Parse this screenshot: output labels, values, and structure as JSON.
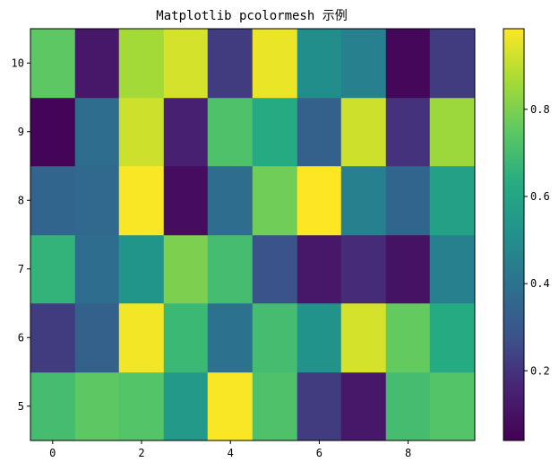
{
  "chart_data": {
    "type": "heatmap",
    "title": "Matplotlib pcolormesh 示例",
    "xlabel": "",
    "ylabel": "",
    "colormap": "viridis",
    "x_range": [
      -0.5,
      9.5
    ],
    "y_range": [
      4.5,
      10.5
    ],
    "x_ticks": [
      0,
      2,
      4,
      6,
      8
    ],
    "y_ticks": [
      5,
      6,
      7,
      8,
      9,
      10
    ],
    "x_centers": [
      0,
      1,
      2,
      3,
      4,
      5,
      6,
      7,
      8,
      9
    ],
    "y_centers": [
      5,
      6,
      7,
      8,
      9,
      10
    ],
    "values": [
      [
        0.7,
        0.75,
        0.73,
        0.55,
        0.98,
        0.72,
        0.22,
        0.12,
        0.7,
        0.73
      ],
      [
        0.22,
        0.33,
        0.97,
        0.68,
        0.4,
        0.7,
        0.52,
        0.93,
        0.76,
        0.62
      ],
      [
        0.66,
        0.38,
        0.53,
        0.8,
        0.7,
        0.28,
        0.12,
        0.18,
        0.1,
        0.45
      ],
      [
        0.35,
        0.36,
        0.98,
        0.08,
        0.38,
        0.78,
        0.99,
        0.45,
        0.35,
        0.58
      ],
      [
        0.05,
        0.38,
        0.92,
        0.15,
        0.72,
        0.62,
        0.33,
        0.92,
        0.2,
        0.85
      ],
      [
        0.75,
        0.12,
        0.86,
        0.93,
        0.22,
        0.96,
        0.5,
        0.45,
        0.06,
        0.22
      ]
    ],
    "colorbar": {
      "range": [
        0.04,
        0.985
      ],
      "ticks": [
        0.2,
        0.4,
        0.6,
        0.8
      ],
      "tick_labels": [
        "0.2",
        "0.4",
        "0.6",
        "0.8"
      ]
    },
    "grid": false,
    "legend": "none"
  }
}
